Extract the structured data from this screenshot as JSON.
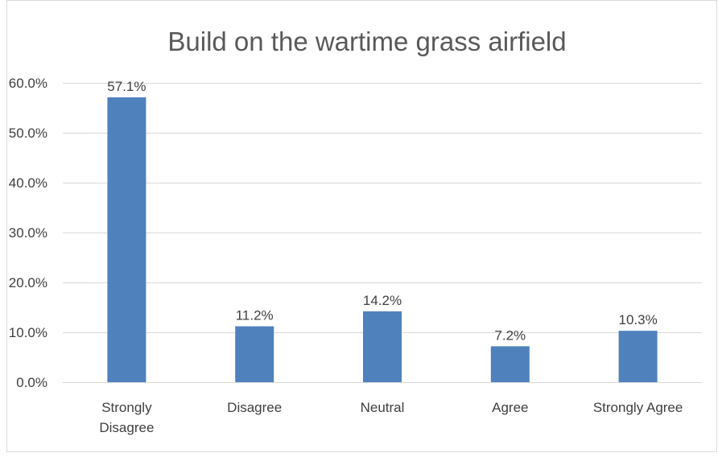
{
  "chart_data": {
    "type": "bar",
    "title": "Build on the wartime grass airfield",
    "categories": [
      "Strongly Disagree",
      "Disagree",
      "Neutral",
      "Agree",
      "Strongly Agree"
    ],
    "category_lines": [
      [
        "Strongly",
        "Disagree"
      ],
      [
        "Disagree"
      ],
      [
        "Neutral"
      ],
      [
        "Agree"
      ],
      [
        "Strongly Agree"
      ]
    ],
    "values": [
      57.1,
      11.2,
      14.2,
      7.2,
      10.3
    ],
    "data_labels": [
      "57.1%",
      "11.2%",
      "14.2%",
      "7.2%",
      "10.3%"
    ],
    "ylim": [
      0,
      60
    ],
    "y_ticks": [
      0,
      10,
      20,
      30,
      40,
      50,
      60
    ],
    "y_tick_labels": [
      "0.0%",
      "10.0%",
      "20.0%",
      "30.0%",
      "40.0%",
      "50.0%",
      "60.0%"
    ],
    "xlabel": "",
    "ylabel": "",
    "grid": true,
    "legend": "none",
    "colors": {
      "bar": "#4f81bd",
      "grid": "#d9d9d9",
      "text": "#404040",
      "title": "#595959",
      "frame": "#d9d9d9"
    }
  }
}
